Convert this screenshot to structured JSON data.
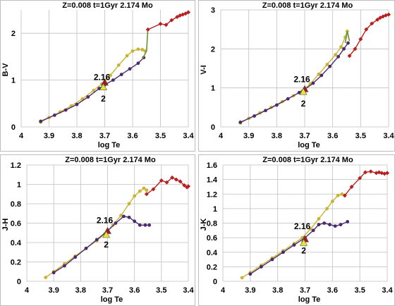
{
  "chart_data": [
    {
      "type": "line",
      "title": "Z=0.008  t=1Gyr  2.174 Mo",
      "xlabel": "log Te",
      "ylabel": "B-V",
      "xlim": [
        4.0,
        3.4
      ],
      "ylim": [
        0,
        2.5
      ],
      "xticks": [
        "4",
        "3.9",
        "3.8",
        "3.7",
        "3.6",
        "3.5",
        "3.4"
      ],
      "yticks": [
        "0",
        "1",
        "2"
      ],
      "grid": true,
      "annotations": [
        {
          "text": "2.16",
          "x": 3.7,
          "y": 1.0
        },
        {
          "text": "2",
          "x": 3.705,
          "y": 0.6
        }
      ],
      "series": [
        {
          "color": "#c8b432",
          "marker": "circle",
          "x": [
            3.93,
            3.9,
            3.86,
            3.82,
            3.78,
            3.74,
            3.71,
            3.68,
            3.65,
            3.62,
            3.6,
            3.58,
            3.565,
            3.555
          ],
          "y": [
            0.1,
            0.2,
            0.32,
            0.45,
            0.6,
            0.78,
            0.92,
            1.1,
            1.32,
            1.52,
            1.62,
            1.66,
            1.65,
            1.62
          ]
        },
        {
          "color": "#4b2a6e",
          "marker": "circle",
          "x": [
            3.93,
            3.88,
            3.84,
            3.8,
            3.76,
            3.72,
            3.7,
            3.67,
            3.64,
            3.61,
            3.58,
            3.56
          ],
          "y": [
            0.12,
            0.25,
            0.36,
            0.48,
            0.64,
            0.82,
            0.9,
            1.0,
            1.12,
            1.24,
            1.36,
            1.48
          ]
        },
        {
          "color": "#6b8e3a",
          "marker": "none",
          "x": [
            3.565,
            3.55,
            3.545
          ],
          "y": [
            1.45,
            1.62,
            2.1
          ]
        },
        {
          "color": "#b82020",
          "marker": "diamond",
          "x": [
            3.545,
            3.5,
            3.48,
            3.46,
            3.44,
            3.43,
            3.42,
            3.41,
            3.4
          ],
          "y": [
            2.08,
            2.2,
            2.18,
            2.28,
            2.35,
            2.38,
            2.4,
            2.42,
            2.45
          ]
        },
        {
          "color": "#a01818",
          "marker": "triangle",
          "x": [
            3.7
          ],
          "y": [
            0.95
          ]
        },
        {
          "color": "#e6e632",
          "marker": "triangle",
          "x": [
            3.705
          ],
          "y": [
            0.85
          ]
        }
      ]
    },
    {
      "type": "line",
      "title": "Z=0.008  t=1Gyr  2.174 Mo",
      "xlabel": "log Te",
      "ylabel": "V-I",
      "xlim": [
        4.0,
        3.4
      ],
      "ylim": [
        0,
        3.0
      ],
      "xticks": [
        "4",
        "3.9",
        "3.8",
        "3.7",
        "3.6",
        "3.5",
        "3.4"
      ],
      "yticks": [
        "0",
        "1",
        "2",
        "3"
      ],
      "grid": true,
      "annotations": [
        {
          "text": "2.16",
          "x": 3.7,
          "y": 1.15
        },
        {
          "text": "2",
          "x": 3.705,
          "y": 0.6
        }
      ],
      "series": [
        {
          "color": "#c8b432",
          "marker": "circle",
          "x": [
            3.93,
            3.9,
            3.86,
            3.82,
            3.78,
            3.74,
            3.71,
            3.68,
            3.65,
            3.62,
            3.59,
            3.57,
            3.555,
            3.548
          ],
          "y": [
            0.1,
            0.22,
            0.36,
            0.5,
            0.65,
            0.8,
            0.92,
            1.1,
            1.35,
            1.6,
            1.85,
            2.05,
            2.3,
            2.45
          ]
        },
        {
          "color": "#4b2a6e",
          "marker": "circle",
          "x": [
            3.93,
            3.88,
            3.84,
            3.8,
            3.76,
            3.72,
            3.7,
            3.67,
            3.64,
            3.61,
            3.58,
            3.56,
            3.545
          ],
          "y": [
            0.12,
            0.28,
            0.42,
            0.56,
            0.72,
            0.88,
            0.96,
            1.12,
            1.32,
            1.55,
            1.8,
            2.0,
            2.15
          ]
        },
        {
          "color": "#6b8e3a",
          "marker": "none",
          "x": [
            3.555,
            3.548,
            3.54
          ],
          "y": [
            2.15,
            2.45,
            2.2
          ]
        },
        {
          "color": "#b82020",
          "marker": "diamond",
          "x": [
            3.54,
            3.52,
            3.5,
            3.48,
            3.46,
            3.44,
            3.43,
            3.42,
            3.41,
            3.4
          ],
          "y": [
            1.82,
            2.0,
            2.25,
            2.5,
            2.65,
            2.75,
            2.8,
            2.83,
            2.86,
            2.88
          ]
        },
        {
          "color": "#a01818",
          "marker": "triangle",
          "x": [
            3.7
          ],
          "y": [
            0.97
          ]
        },
        {
          "color": "#e6e632",
          "marker": "triangle",
          "x": [
            3.705
          ],
          "y": [
            0.9
          ]
        }
      ]
    },
    {
      "type": "line",
      "title": "Z=0.008  t=1Gyr  2.174 Mo",
      "xlabel": "log Te",
      "ylabel": "J-H",
      "xlim": [
        4.0,
        3.4
      ],
      "ylim": [
        0,
        1.2
      ],
      "xticks": [
        "4",
        "3.9",
        "3.8",
        "3.7",
        "3.6",
        "3.5",
        "3.4"
      ],
      "yticks": [
        "0",
        "0.2",
        "0.4",
        "0.6",
        "0.8",
        "1",
        "1.2"
      ],
      "grid": true,
      "annotations": [
        {
          "text": "2.16",
          "x": 3.7,
          "y": 0.6
        },
        {
          "text": "2",
          "x": 3.705,
          "y": 0.38
        }
      ],
      "series": [
        {
          "color": "#c8b432",
          "marker": "circle",
          "x": [
            3.93,
            3.9,
            3.86,
            3.82,
            3.78,
            3.74,
            3.71,
            3.68,
            3.65,
            3.62,
            3.6,
            3.58,
            3.565,
            3.555
          ],
          "y": [
            0.04,
            0.1,
            0.18,
            0.26,
            0.34,
            0.42,
            0.49,
            0.58,
            0.68,
            0.8,
            0.88,
            0.93,
            0.96,
            0.94
          ]
        },
        {
          "color": "#4b2a6e",
          "marker": "circle",
          "x": [
            3.9,
            3.86,
            3.82,
            3.78,
            3.74,
            3.7,
            3.67,
            3.64,
            3.62,
            3.6,
            3.58,
            3.56,
            3.545
          ],
          "y": [
            0.09,
            0.16,
            0.25,
            0.34,
            0.43,
            0.52,
            0.6,
            0.67,
            0.66,
            0.62,
            0.58,
            0.58,
            0.58
          ]
        },
        {
          "color": "#b82020",
          "marker": "diamond",
          "x": [
            3.555,
            3.53,
            3.5,
            3.48,
            3.46,
            3.445,
            3.43,
            3.415,
            3.405,
            3.4
          ],
          "y": [
            0.9,
            0.95,
            1.04,
            1.02,
            1.07,
            1.05,
            1.03,
            0.99,
            0.97,
            0.98
          ]
        },
        {
          "color": "#a01818",
          "marker": "triangle",
          "x": [
            3.7
          ],
          "y": [
            0.52
          ]
        },
        {
          "color": "#e6e632",
          "marker": "triangle",
          "x": [
            3.705
          ],
          "y": [
            0.48
          ]
        }
      ]
    },
    {
      "type": "line",
      "title": "Z=0.008  t=1Gyr  2.174 Mo",
      "xlabel": "log Te",
      "ylabel": "J-K",
      "xlim": [
        4.0,
        3.4
      ],
      "ylim": [
        0,
        1.6
      ],
      "xticks": [
        "4",
        "3.9",
        "3.8",
        "3.7",
        "3.6",
        "3.5",
        "3.4"
      ],
      "yticks": [
        "0",
        "0.2",
        "0.4",
        "0.6",
        "0.8",
        "1",
        "1.2",
        "1.4",
        "1.6"
      ],
      "grid": true,
      "annotations": [
        {
          "text": "2.16",
          "x": 3.7,
          "y": 0.72
        },
        {
          "text": "2",
          "x": 3.705,
          "y": 0.42
        }
      ],
      "series": [
        {
          "color": "#c8b432",
          "marker": "circle",
          "x": [
            3.93,
            3.9,
            3.86,
            3.82,
            3.78,
            3.74,
            3.71,
            3.68,
            3.65,
            3.62,
            3.6,
            3.58,
            3.565,
            3.555
          ],
          "y": [
            0.05,
            0.12,
            0.22,
            0.32,
            0.42,
            0.52,
            0.6,
            0.72,
            0.86,
            1.0,
            1.1,
            1.18,
            1.2,
            1.18
          ]
        },
        {
          "color": "#4b2a6e",
          "marker": "circle",
          "x": [
            3.9,
            3.86,
            3.82,
            3.78,
            3.74,
            3.7,
            3.67,
            3.65,
            3.63,
            3.61,
            3.59,
            3.57,
            3.545
          ],
          "y": [
            0.1,
            0.2,
            0.3,
            0.4,
            0.5,
            0.6,
            0.7,
            0.78,
            0.8,
            0.78,
            0.76,
            0.78,
            0.82
          ]
        },
        {
          "color": "#b82020",
          "marker": "diamond",
          "x": [
            3.555,
            3.53,
            3.5,
            3.48,
            3.46,
            3.44,
            3.43,
            3.42,
            3.41,
            3.4
          ],
          "y": [
            1.18,
            1.3,
            1.42,
            1.5,
            1.51,
            1.49,
            1.5,
            1.49,
            1.48,
            1.49
          ]
        },
        {
          "color": "#a01818",
          "marker": "triangle",
          "x": [
            3.7
          ],
          "y": [
            0.58
          ]
        },
        {
          "color": "#e6e632",
          "marker": "triangle",
          "x": [
            3.705
          ],
          "y": [
            0.53
          ]
        }
      ]
    }
  ]
}
